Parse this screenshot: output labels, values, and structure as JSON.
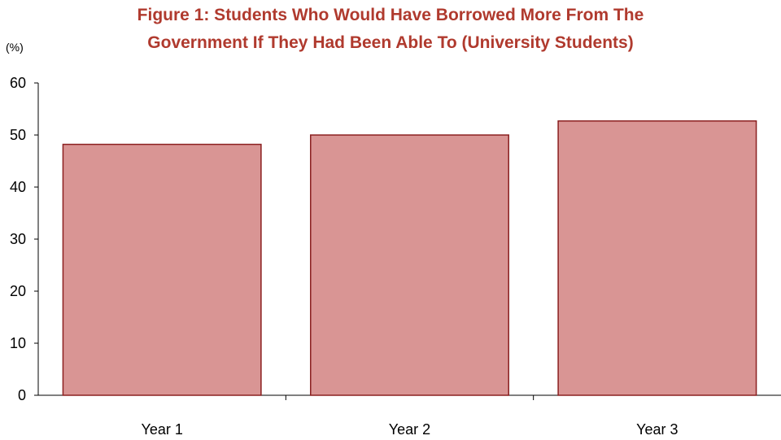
{
  "chart_data": {
    "type": "bar",
    "title_lines": [
      "Figure 1: Students Who Would Have Borrowed More From The",
      "Government If They Had Been Able To (University Students)"
    ],
    "unit_label": "(%)",
    "categories": [
      "Year 1",
      "Year 2",
      "Year 3"
    ],
    "values": [
      48.2,
      50.0,
      52.7
    ],
    "ylim": [
      0,
      60
    ],
    "yticks": [
      "0",
      "10",
      "20",
      "30",
      "40",
      "50",
      "60"
    ],
    "grid": false,
    "legend": "none",
    "bar_fill": "#d99594",
    "bar_stroke": "#8b2020",
    "title_color": "#b03a2e"
  }
}
